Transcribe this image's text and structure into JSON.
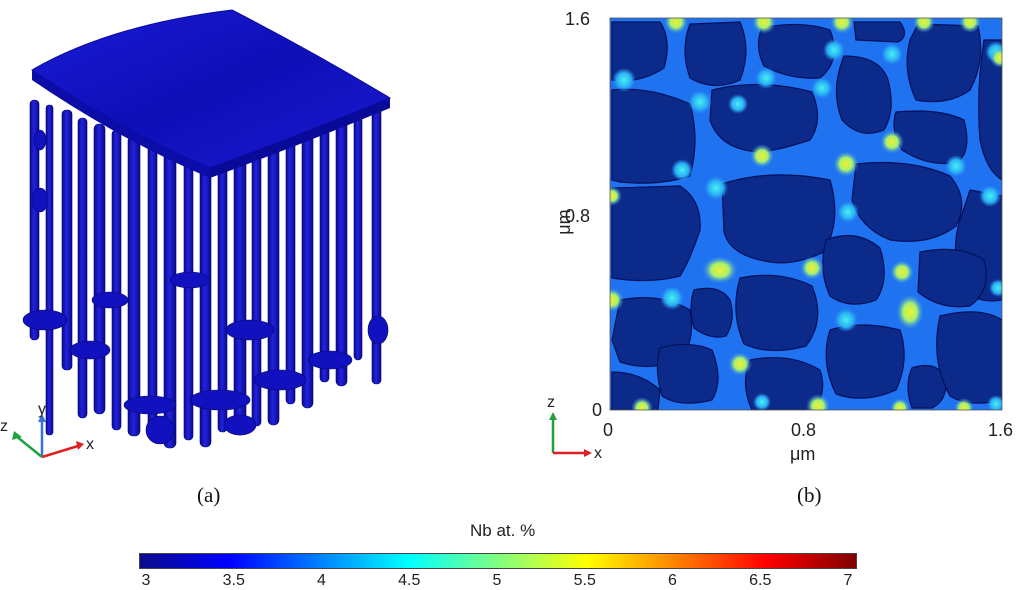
{
  "panel_a": {
    "caption": "(a)",
    "triad": {
      "x": "x",
      "y": "y",
      "z": "z"
    }
  },
  "panel_b": {
    "caption": "(b)",
    "y_ticks": [
      "1.6",
      "0.8",
      "0"
    ],
    "x_ticks": [
      "0",
      "0.8",
      "1.6"
    ],
    "y_axis_label": "μm",
    "x_axis_label": "μm",
    "triad": {
      "x": "x",
      "z": "z"
    }
  },
  "colorbar": {
    "title": "Nb at. %",
    "ticks": [
      "3",
      "3.5",
      "4",
      "4.5",
      "5",
      "5.5",
      "6",
      "6.5",
      "7"
    ],
    "range": [
      3,
      7
    ],
    "colors": [
      "#0b0b8c",
      "#0000ff",
      "#0080ff",
      "#00ffff",
      "#80ff80",
      "#ffff00",
      "#ff8000",
      "#ff0000",
      "#800000"
    ]
  },
  "colors": {
    "cell_fill": "#0c2a8a",
    "channel": "#1b6df0",
    "node_hot": "#f2e840",
    "node_cyan": "#35e0f0",
    "surface": "#1414c8"
  }
}
